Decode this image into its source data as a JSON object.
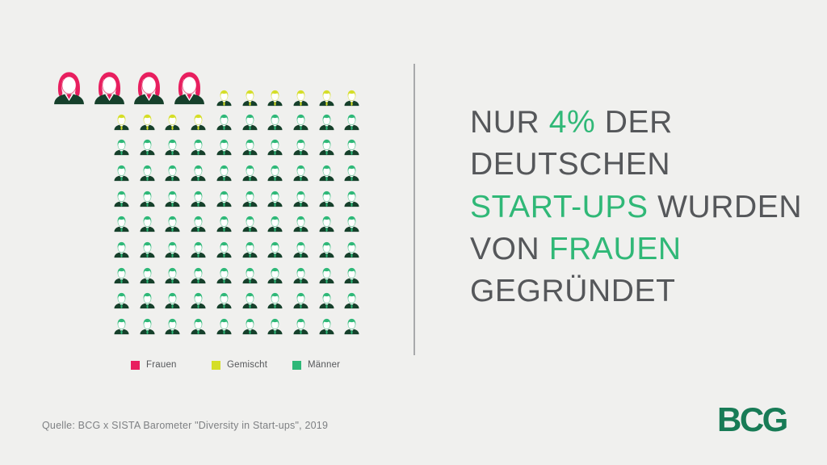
{
  "canvas": {
    "background": "#f0f0ee"
  },
  "headline": {
    "text_color": "#55575a",
    "highlight_color": "#30b877",
    "lines": [
      [
        {
          "text": "NUR ",
          "highlight": false
        },
        {
          "text": "4%",
          "highlight": true
        },
        {
          "text": " DER",
          "highlight": false
        }
      ],
      [
        {
          "text": "DEUTSCHEN",
          "highlight": false
        }
      ],
      [
        {
          "text": "START-UPS",
          "highlight": true
        },
        {
          "text": " WURDEN",
          "highlight": false
        }
      ],
      [
        {
          "text": "VON ",
          "highlight": false
        },
        {
          "text": "FRAUEN",
          "highlight": true
        }
      ],
      [
        {
          "text": "GEGRÜNDET",
          "highlight": false
        }
      ]
    ]
  },
  "legend": {
    "items": [
      {
        "label": "Frauen",
        "color": "#e81f5f"
      },
      {
        "label": "Gemischt",
        "color": "#d5de27"
      },
      {
        "label": "Männer",
        "color": "#2eb878"
      }
    ]
  },
  "source": {
    "text": "Quelle: BCG x SISTA Barometer \"Diversity in Start-ups\", 2019",
    "color": "#7e8083"
  },
  "logo": {
    "text": "BCG",
    "color": "#187b56"
  },
  "divider_color": "#a8a9ab",
  "chart_data": {
    "type": "pictogram",
    "title": "",
    "total_icons": 100,
    "categories": [
      "Frauen",
      "Gemischt",
      "Männer"
    ],
    "values": [
      4,
      10,
      86
    ],
    "unit": "% (1 icon = 1%)",
    "grid": {
      "rows": 10,
      "cols": 10
    },
    "legend_position": "bottom",
    "suit_color": "#16402b",
    "series": [
      {
        "name": "Frauen",
        "value": 4,
        "color": "#e81f5f",
        "icon": "female",
        "emphasized": true
      },
      {
        "name": "Gemischt",
        "value": 10,
        "color": "#d5de27",
        "icon": "male",
        "emphasized": false
      },
      {
        "name": "Männer",
        "value": 86,
        "color": "#2eb878",
        "icon": "male",
        "emphasized": false
      }
    ]
  }
}
